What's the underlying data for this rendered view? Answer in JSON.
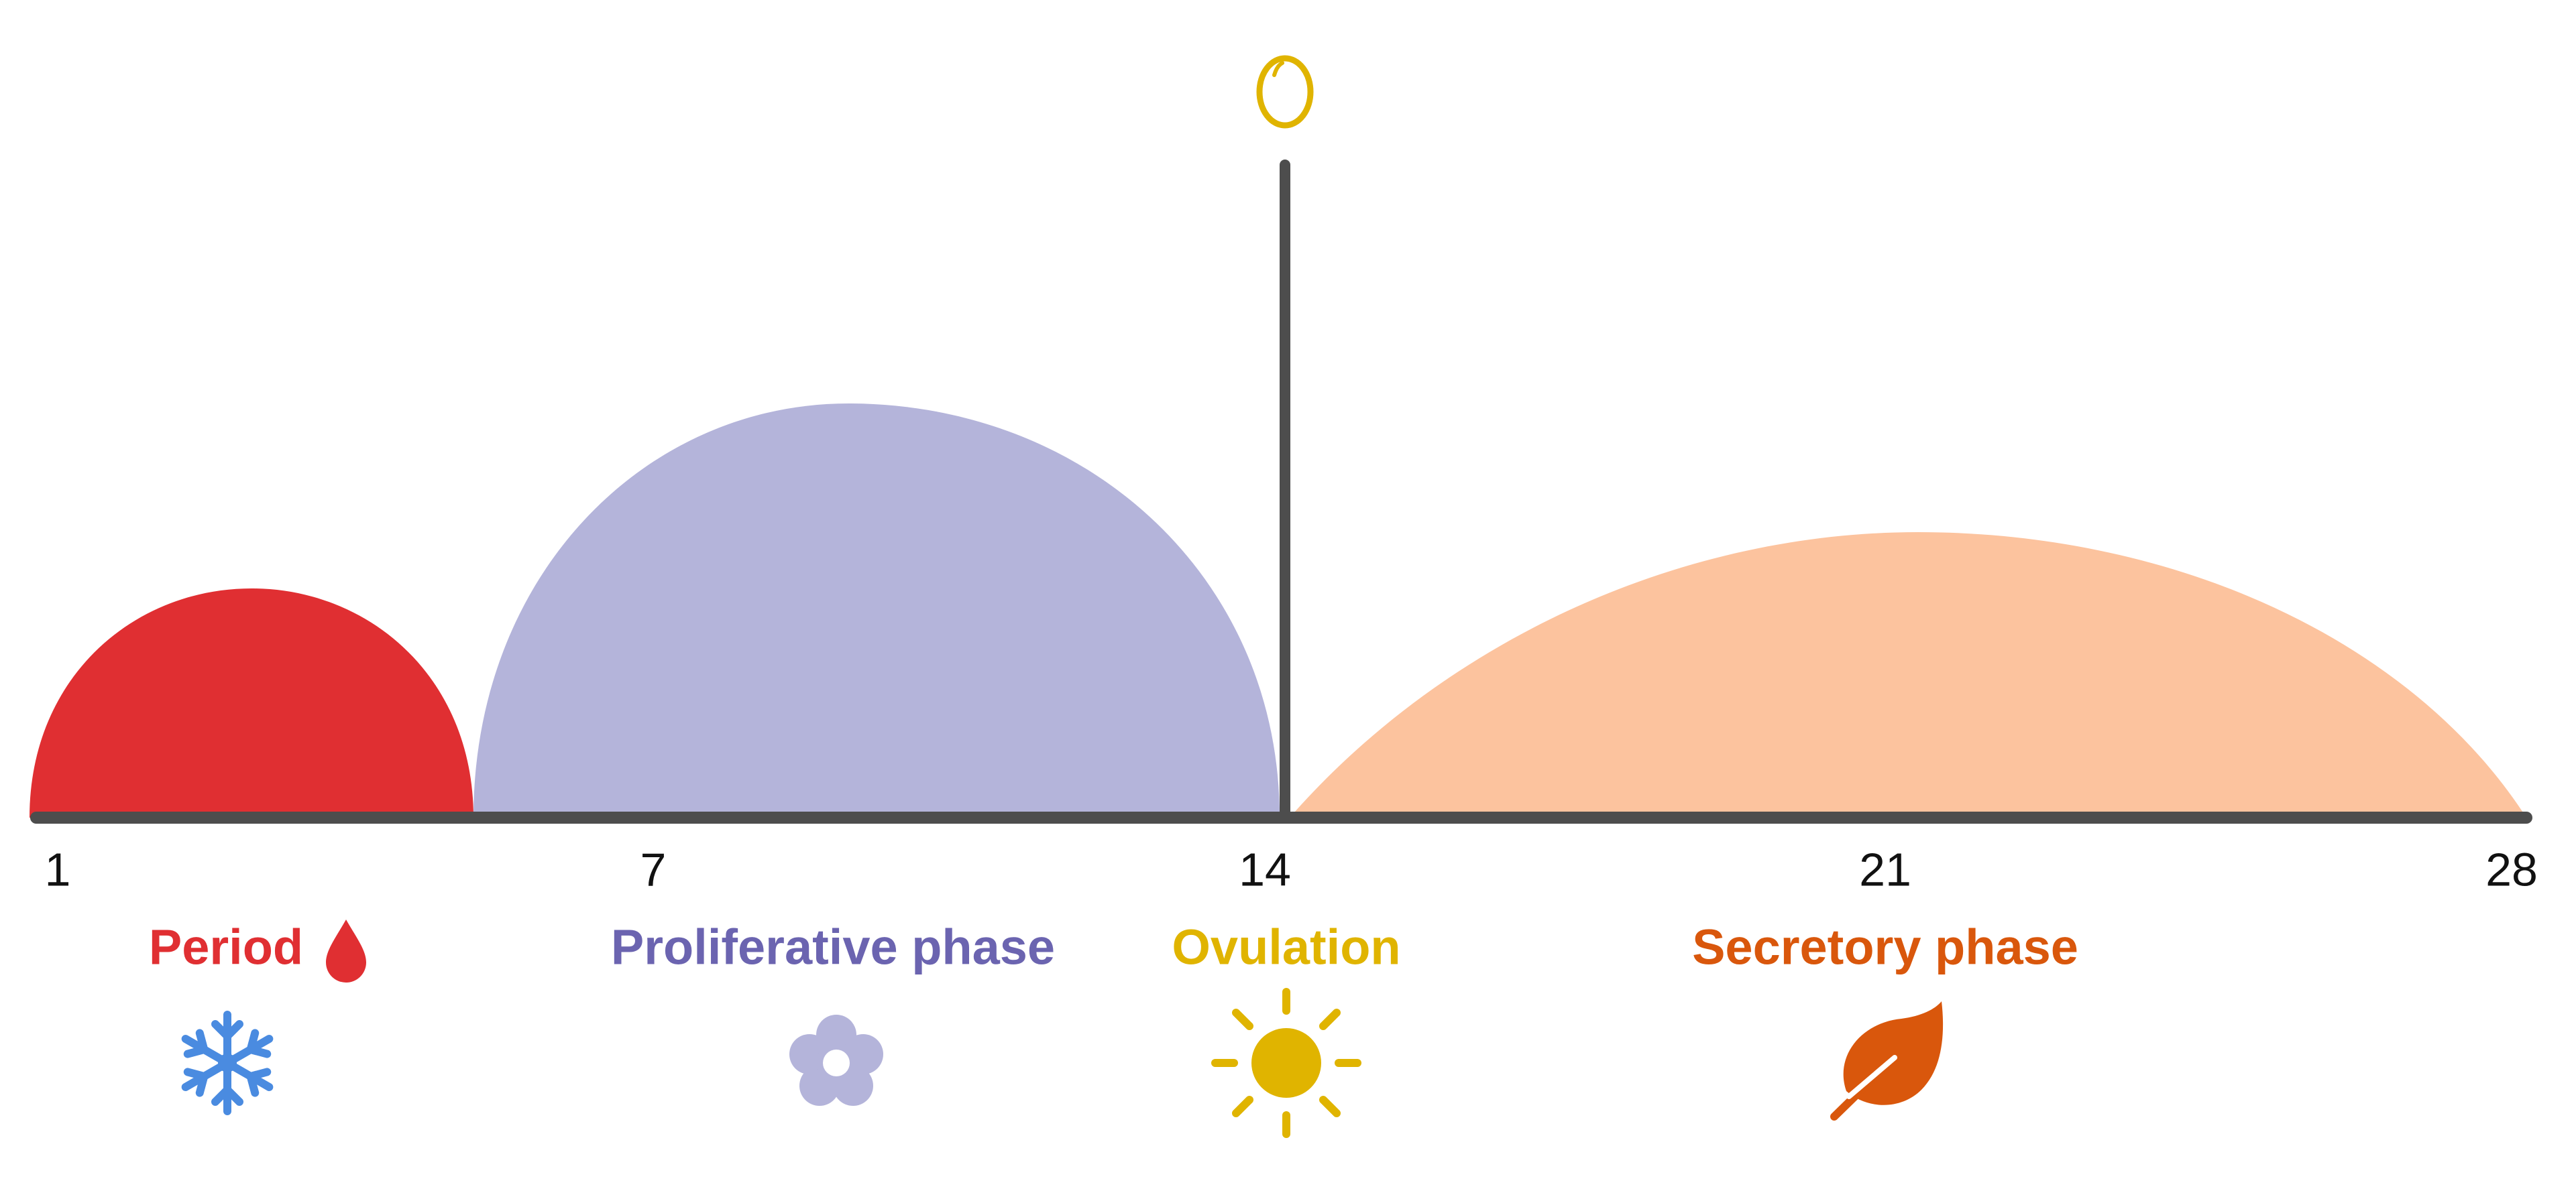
{
  "axis": {
    "ticks": [
      "1",
      "7",
      "14",
      "21",
      "28"
    ]
  },
  "phases": [
    {
      "label": "Period"
    },
    {
      "label": "Proliferative phase"
    },
    {
      "label": "Ovulation"
    },
    {
      "label": "Secretory phase"
    }
  ]
}
